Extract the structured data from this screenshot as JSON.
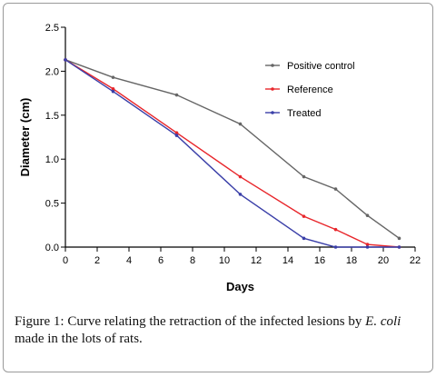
{
  "chart_data": {
    "type": "line",
    "xlabel": "Days",
    "ylabel": "Diameter (cm)",
    "xlim": [
      0,
      22
    ],
    "ylim": [
      0,
      2.5
    ],
    "xticks": [
      "0",
      "2",
      "4",
      "6",
      "8",
      "10",
      "12",
      "14",
      "16",
      "18",
      "20",
      "22"
    ],
    "yticks": [
      "0.0",
      "0.5",
      "1.0",
      "1.5",
      "2.0",
      "2.5"
    ],
    "legend_position": "top-right",
    "grid": false,
    "series": [
      {
        "name": "Positive control",
        "color": "#666666",
        "points": [
          [
            0,
            2.13
          ],
          [
            3,
            1.93
          ],
          [
            7,
            1.73
          ],
          [
            11,
            1.4
          ],
          [
            15,
            0.8
          ],
          [
            17,
            0.66
          ],
          [
            19,
            0.36
          ],
          [
            21,
            0.1
          ]
        ]
      },
      {
        "name": "Reference",
        "color": "#e8262b",
        "points": [
          [
            0,
            2.13
          ],
          [
            3,
            1.8
          ],
          [
            7,
            1.3
          ],
          [
            11,
            0.8
          ],
          [
            15,
            0.35
          ],
          [
            17,
            0.2
          ],
          [
            19,
            0.03
          ],
          [
            21,
            0.0
          ]
        ]
      },
      {
        "name": "Treated",
        "color": "#3a3fa8",
        "points": [
          [
            0,
            2.13
          ],
          [
            3,
            1.77
          ],
          [
            7,
            1.27
          ],
          [
            11,
            0.6
          ],
          [
            15,
            0.1
          ],
          [
            17,
            0.0
          ],
          [
            19,
            0.0
          ],
          [
            21,
            0.0
          ]
        ]
      }
    ]
  },
  "caption": {
    "figure_label": "Figure 1:",
    "text_before": " Curve relating the retraction of the infected lesions by ",
    "italic_1": "E.",
    "italic_2": "coli",
    "text_after": " made in the lots of rats."
  }
}
